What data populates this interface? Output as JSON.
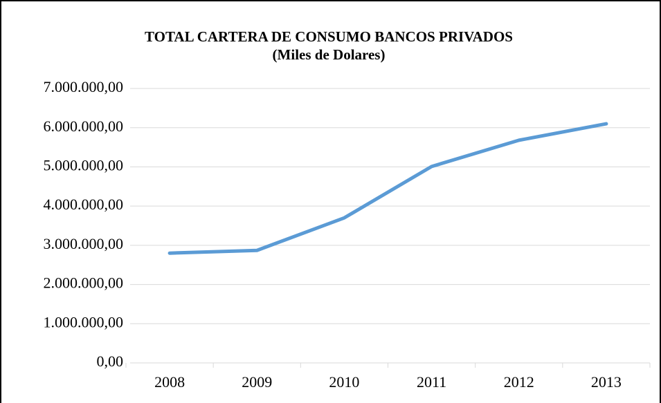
{
  "chart_data": {
    "type": "line",
    "title": "TOTAL CARTERA DE CONSUMO  BANCOS PRIVADOS",
    "subtitle": "(Miles de Dolares)",
    "categories": [
      "2008",
      "2009",
      "2010",
      "2011",
      "2012",
      "2013"
    ],
    "values": [
      2800000,
      2870000,
      3700000,
      5010000,
      5680000,
      6100000
    ],
    "color": "#5b9bd5",
    "ylim": [
      0,
      7000000
    ],
    "yticks": [
      {
        "value": 0,
        "label": "0,00"
      },
      {
        "value": 1000000,
        "label": "1.000.000,00"
      },
      {
        "value": 2000000,
        "label": "2.000.000,00"
      },
      {
        "value": 3000000,
        "label": "3.000.000,00"
      },
      {
        "value": 4000000,
        "label": "4.000.000,00"
      },
      {
        "value": 5000000,
        "label": "5.000.000,00"
      },
      {
        "value": 6000000,
        "label": "6.000.000,00"
      },
      {
        "value": 7000000,
        "label": "7.000.000,00"
      }
    ],
    "grid": true
  }
}
